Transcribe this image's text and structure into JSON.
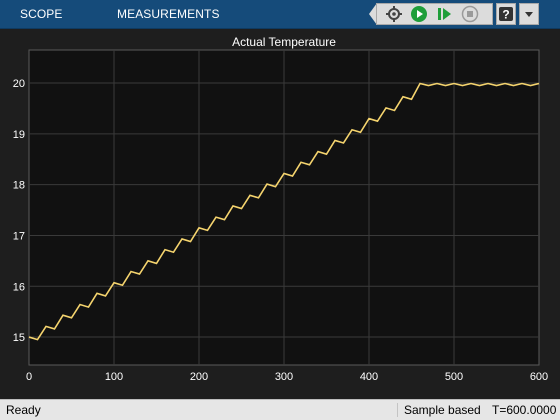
{
  "toolbar": {
    "tabs": [
      {
        "label": "SCOPE"
      },
      {
        "label": "MEASUREMENTS"
      }
    ],
    "controls": [
      "settings-icon",
      "run-icon",
      "step-forward-icon",
      "stop-icon",
      "help-icon",
      "menu-icon"
    ],
    "help_label": "?",
    "colors": {
      "bar": "#154b7a",
      "run": "#1f9e3a"
    }
  },
  "chart_data": {
    "type": "line",
    "title": "Actual Temperature",
    "xlabel": "",
    "ylabel": "",
    "xlim": [
      0,
      600
    ],
    "ylim": [
      14.45,
      20.65
    ],
    "xticks": [
      "0",
      "100",
      "200",
      "300",
      "400",
      "500",
      "600"
    ],
    "yticks": [
      "15",
      "16",
      "17",
      "18",
      "19",
      "20"
    ],
    "grid": true,
    "line_color": "#f5d46e",
    "series": [
      {
        "x": [
          0,
          10,
          20,
          30,
          40,
          50,
          60,
          70,
          80,
          90,
          100,
          110,
          120,
          130,
          140,
          150,
          160,
          170,
          180,
          190,
          200,
          210,
          220,
          230,
          240,
          250,
          260,
          270,
          280,
          290,
          300,
          310,
          320,
          330,
          340,
          350,
          360,
          370,
          380,
          390,
          400,
          410,
          420,
          430,
          440,
          450,
          460,
          470,
          480,
          490,
          500,
          510,
          520,
          530,
          540,
          550,
          560,
          570,
          580,
          590,
          600
        ],
        "y": [
          15.0,
          14.95,
          15.21,
          15.16,
          15.43,
          15.38,
          15.64,
          15.59,
          15.86,
          15.81,
          16.07,
          16.02,
          16.29,
          16.24,
          16.5,
          16.45,
          16.72,
          16.67,
          16.93,
          16.88,
          17.15,
          17.1,
          17.36,
          17.31,
          17.58,
          17.53,
          17.79,
          17.74,
          18.01,
          17.96,
          18.22,
          18.17,
          18.44,
          18.39,
          18.65,
          18.6,
          18.87,
          18.82,
          19.08,
          19.03,
          19.3,
          19.25,
          19.51,
          19.46,
          19.73,
          19.68,
          19.99,
          19.95,
          19.99,
          19.95,
          19.99,
          19.95,
          19.99,
          19.95,
          19.99,
          19.95,
          19.99,
          19.95,
          19.99,
          19.95,
          19.99
        ]
      }
    ]
  },
  "status": {
    "left": "Ready",
    "mode": "Sample based",
    "time": "T=600.0000"
  }
}
